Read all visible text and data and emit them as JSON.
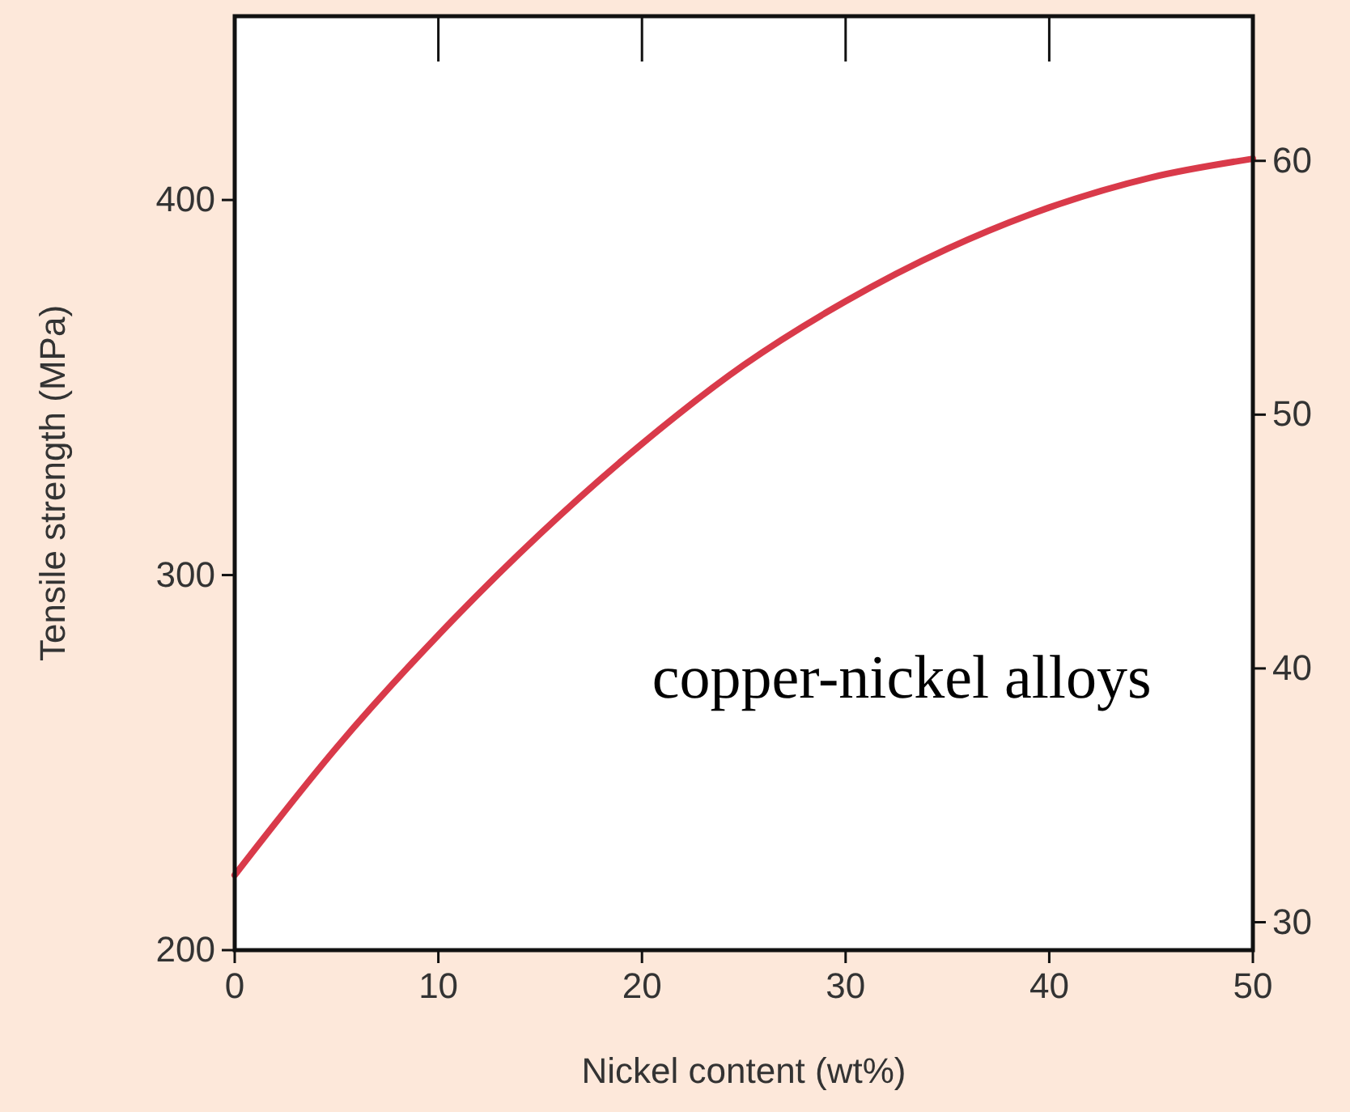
{
  "chart_data": {
    "type": "line",
    "xlabel": "Nickel content (wt%)",
    "ylabel": "Tensile strength (MPa)",
    "x": [
      0,
      5,
      10,
      15,
      20,
      25,
      30,
      35,
      40,
      45,
      50
    ],
    "series": [
      {
        "color": "#d93a4a",
        "values": [
          220,
          254,
          284,
          311,
          335,
          356,
          373,
          387,
          398,
          406,
          411
        ]
      }
    ],
    "xlim": [
      0,
      50
    ],
    "xticks": [
      0,
      10,
      20,
      30,
      40,
      50
    ],
    "ylim": [
      200,
      449
    ],
    "yticks": [
      200,
      300,
      400
    ],
    "y2lim": [
      28.9,
      65.7
    ],
    "y2ticks": [
      30,
      40,
      50,
      60
    ],
    "annotations": [
      "copper-nickel alloys"
    ],
    "grid": false,
    "marker": "none",
    "line_style": "solid"
  }
}
